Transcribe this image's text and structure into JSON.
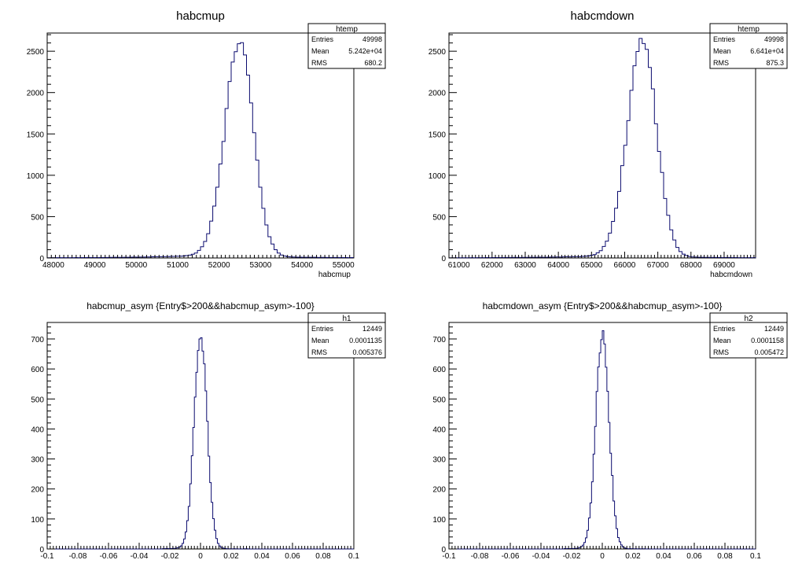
{
  "chart_data": [
    {
      "type": "bar",
      "title": "habcmup",
      "xlabel": "habcmup",
      "ylabel": "",
      "xlim": [
        47850,
        55250
      ],
      "ylim": [
        0,
        2720
      ],
      "xticks": [
        48000,
        49000,
        50000,
        51000,
        52000,
        53000,
        54000,
        55000
      ],
      "xtick_labels": [
        "48000",
        "49000",
        "50000",
        "51000",
        "52000",
        "53000",
        "54000",
        "55000"
      ],
      "yticks": [
        0,
        500,
        1000,
        1500,
        2000,
        2500
      ],
      "ytick_labels": [
        "0",
        "500",
        "1000",
        "1500",
        "2000",
        "2500"
      ],
      "grid": false,
      "stats": {
        "name": "htemp",
        "rows": [
          [
            "Entries",
            "49998"
          ],
          [
            "Mean",
            "5.242e+04"
          ],
          [
            "RMS",
            "680.2"
          ]
        ]
      },
      "histogram": {
        "kind": "peak",
        "center": 52500,
        "sigma_left": 360,
        "sigma_right": 330,
        "peak": 2580,
        "tail_amp": 55,
        "tail_scale": 1500,
        "bins": 100
      }
    },
    {
      "type": "bar",
      "title": "habcmdown",
      "xlabel": "habcmdown",
      "ylabel": "",
      "xlim": [
        60700,
        69950
      ],
      "ylim": [
        0,
        2720
      ],
      "xticks": [
        61000,
        62000,
        63000,
        64000,
        65000,
        66000,
        67000,
        68000,
        69000
      ],
      "xtick_labels": [
        "61000",
        "62000",
        "63000",
        "64000",
        "65000",
        "66000",
        "67000",
        "68000",
        "69000"
      ],
      "yticks": [
        0,
        500,
        1000,
        1500,
        2000,
        2500
      ],
      "ytick_labels": [
        "0",
        "500",
        "1000",
        "1500",
        "2000",
        "2500"
      ],
      "grid": false,
      "stats": {
        "name": "htemp",
        "rows": [
          [
            "Entries",
            "49998"
          ],
          [
            "Mean",
            "6.641e+04"
          ],
          [
            "RMS",
            "875.3"
          ]
        ]
      },
      "histogram": {
        "kind": "peak",
        "center": 66550,
        "sigma_left": 470,
        "sigma_right": 420,
        "peak": 2560,
        "tail_amp": 45,
        "tail_scale": 1900,
        "bins": 100
      }
    },
    {
      "type": "bar",
      "title": "habcmup_asym {Entry$>200&&habcmup_asym>-100}",
      "xlabel": "",
      "ylabel": "",
      "xlim": [
        -0.1,
        0.1
      ],
      "ylim": [
        0,
        755
      ],
      "xticks": [
        -0.1,
        -0.08,
        -0.06,
        -0.04,
        -0.02,
        0,
        0.02,
        0.04,
        0.06,
        0.08,
        0.1
      ],
      "xtick_labels": [
        "-0.1",
        "-0.08",
        "-0.06",
        "-0.04",
        "-0.02",
        "0",
        "0.02",
        "0.04",
        "0.06",
        "0.08",
        "0.1"
      ],
      "yticks": [
        0,
        100,
        200,
        300,
        400,
        500,
        600,
        700
      ],
      "ytick_labels": [
        "0",
        "100",
        "200",
        "300",
        "400",
        "500",
        "600",
        "700"
      ],
      "grid": false,
      "stats": {
        "name": "h1",
        "rows": [
          [
            "Entries",
            "12449"
          ],
          [
            "Mean",
            "0.0001135"
          ],
          [
            "RMS",
            "0.005376"
          ]
        ]
      },
      "histogram": {
        "kind": "narrow",
        "center": 0.0001,
        "sigma_left": 0.0042,
        "sigma_right": 0.0042,
        "peak": 715,
        "tail_amp": 8,
        "tail_scale": 0.012,
        "bins": 200,
        "min": -0.025,
        "max": 0.031
      }
    },
    {
      "type": "bar",
      "title": "habcmdown_asym {Entry$>200&&habcmup_asym>-100}",
      "xlabel": "",
      "ylabel": "",
      "xlim": [
        -0.1,
        0.1
      ],
      "ylim": [
        0,
        755
      ],
      "xticks": [
        -0.1,
        -0.08,
        -0.06,
        -0.04,
        -0.02,
        0,
        0.02,
        0.04,
        0.06,
        0.08,
        0.1
      ],
      "xtick_labels": [
        "-0.1",
        "-0.08",
        "-0.06",
        "-0.04",
        "-0.02",
        "0",
        "0.02",
        "0.04",
        "0.06",
        "0.08",
        "0.1"
      ],
      "yticks": [
        0,
        100,
        200,
        300,
        400,
        500,
        600,
        700
      ],
      "ytick_labels": [
        "0",
        "100",
        "200",
        "300",
        "400",
        "500",
        "600",
        "700"
      ],
      "grid": false,
      "stats": {
        "name": "h2",
        "rows": [
          [
            "Entries",
            "12449"
          ],
          [
            "Mean",
            "0.0001158"
          ],
          [
            "RMS",
            "0.005472"
          ]
        ]
      },
      "histogram": {
        "kind": "narrow",
        "center": 0.0001,
        "sigma_left": 0.0043,
        "sigma_right": 0.0043,
        "peak": 712,
        "tail_amp": 8,
        "tail_scale": 0.012,
        "bins": 200,
        "min": -0.025,
        "max": 0.031
      }
    }
  ]
}
